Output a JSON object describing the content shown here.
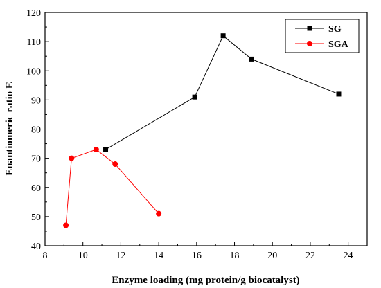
{
  "chart_data": {
    "type": "line",
    "title": "",
    "xlabel": "Enzyme loading (mg protein/g biocatalyst)",
    "ylabel": "Enantiomeric ratio E",
    "xlim": [
      8,
      25
    ],
    "ylim": [
      40,
      120
    ],
    "xticks": [
      8,
      10,
      12,
      14,
      16,
      18,
      20,
      22,
      24
    ],
    "yticks": [
      40,
      50,
      60,
      70,
      80,
      90,
      100,
      110,
      120
    ],
    "grid": false,
    "legend_position": "top-right",
    "series": [
      {
        "name": "SG",
        "color": "#000000",
        "marker": "square",
        "x": [
          11.2,
          15.9,
          17.4,
          18.9,
          23.5
        ],
        "y": [
          73,
          91,
          112,
          104,
          92
        ]
      },
      {
        "name": "SGA",
        "color": "#ff0000",
        "marker": "circle",
        "x": [
          9.1,
          9.4,
          10.7,
          11.7,
          14.0
        ],
        "y": [
          47,
          70,
          73,
          68,
          51
        ]
      }
    ]
  }
}
